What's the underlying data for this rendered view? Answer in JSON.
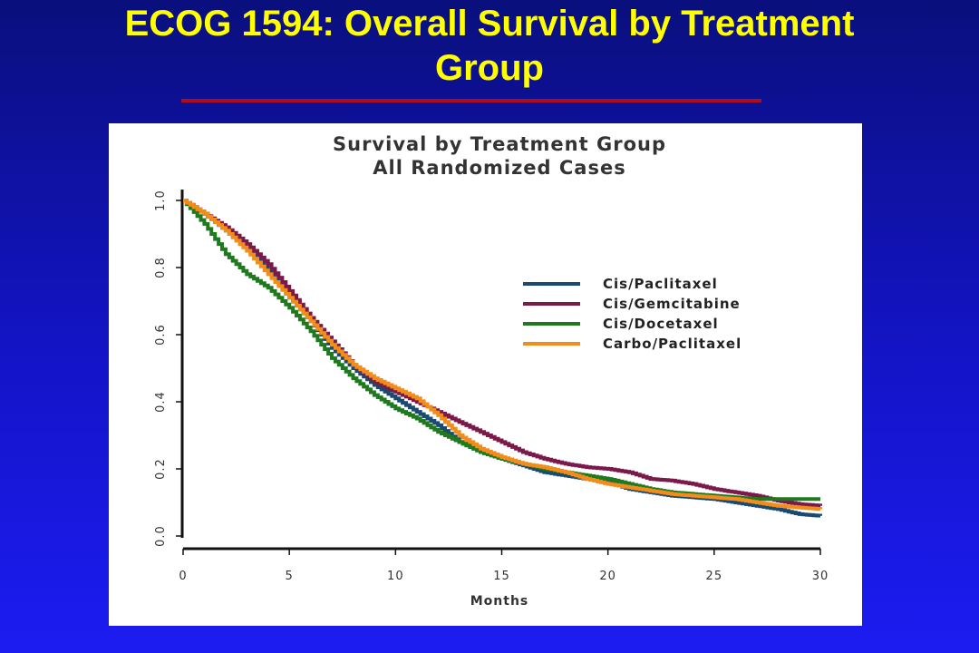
{
  "slide": {
    "title_line1": "ECOG 1594: Overall Survival by Treatment",
    "title_line2": "Group"
  },
  "chart_data": {
    "type": "line",
    "title": "Survival by Treatment Group",
    "subtitle": "All Randomized Cases",
    "xlabel": "Months",
    "ylabel": "",
    "xlim": [
      0,
      30
    ],
    "ylim": [
      0,
      1
    ],
    "x_ticks": [
      "0",
      "5",
      "10",
      "15",
      "20",
      "25",
      "30"
    ],
    "y_ticks": [
      "0.0",
      "0.2",
      "0.4",
      "0.6",
      "0.8",
      "1.0"
    ],
    "grid": false,
    "legend_position": "right",
    "series": [
      {
        "name": "Cis/Paclitaxel",
        "color": "#1a4a72",
        "points": [
          [
            0,
            1.0
          ],
          [
            1,
            0.96
          ],
          [
            2,
            0.91
          ],
          [
            3,
            0.86
          ],
          [
            4,
            0.79
          ],
          [
            5,
            0.71
          ],
          [
            6,
            0.64
          ],
          [
            7,
            0.56
          ],
          [
            8,
            0.5
          ],
          [
            9,
            0.45
          ],
          [
            10,
            0.41
          ],
          [
            11,
            0.37
          ],
          [
            12,
            0.33
          ],
          [
            13,
            0.28
          ],
          [
            14,
            0.25
          ],
          [
            15,
            0.23
          ],
          [
            16,
            0.21
          ],
          [
            17,
            0.19
          ],
          [
            18,
            0.18
          ],
          [
            19,
            0.17
          ],
          [
            20,
            0.16
          ],
          [
            21,
            0.14
          ],
          [
            22,
            0.13
          ],
          [
            23,
            0.12
          ],
          [
            24,
            0.115
          ],
          [
            25,
            0.11
          ],
          [
            26,
            0.1
          ],
          [
            27,
            0.09
          ],
          [
            28,
            0.08
          ],
          [
            29,
            0.065
          ],
          [
            30,
            0.06
          ]
        ]
      },
      {
        "name": "Cis/Gemcitabine",
        "color": "#7b1a4a",
        "points": [
          [
            0,
            1.0
          ],
          [
            1,
            0.96
          ],
          [
            2,
            0.92
          ],
          [
            3,
            0.87
          ],
          [
            4,
            0.81
          ],
          [
            5,
            0.73
          ],
          [
            6,
            0.65
          ],
          [
            7,
            0.58
          ],
          [
            8,
            0.51
          ],
          [
            9,
            0.46
          ],
          [
            10,
            0.43
          ],
          [
            11,
            0.4
          ],
          [
            12,
            0.37
          ],
          [
            13,
            0.34
          ],
          [
            14,
            0.31
          ],
          [
            15,
            0.28
          ],
          [
            16,
            0.25
          ],
          [
            17,
            0.23
          ],
          [
            18,
            0.215
          ],
          [
            19,
            0.205
          ],
          [
            20,
            0.2
          ],
          [
            21,
            0.19
          ],
          [
            22,
            0.17
          ],
          [
            23,
            0.165
          ],
          [
            24,
            0.155
          ],
          [
            25,
            0.14
          ],
          [
            26,
            0.13
          ],
          [
            27,
            0.12
          ],
          [
            28,
            0.105
          ],
          [
            29,
            0.095
          ],
          [
            30,
            0.09
          ]
        ]
      },
      {
        "name": "Cis/Docetaxel",
        "color": "#1f7a1f",
        "points": [
          [
            0,
            1.0
          ],
          [
            1,
            0.93
          ],
          [
            2,
            0.84
          ],
          [
            3,
            0.78
          ],
          [
            4,
            0.74
          ],
          [
            5,
            0.68
          ],
          [
            6,
            0.61
          ],
          [
            7,
            0.53
          ],
          [
            8,
            0.47
          ],
          [
            9,
            0.42
          ],
          [
            10,
            0.38
          ],
          [
            11,
            0.35
          ],
          [
            12,
            0.31
          ],
          [
            13,
            0.28
          ],
          [
            14,
            0.25
          ],
          [
            15,
            0.23
          ],
          [
            16,
            0.215
          ],
          [
            17,
            0.2
          ],
          [
            18,
            0.19
          ],
          [
            19,
            0.18
          ],
          [
            20,
            0.17
          ],
          [
            21,
            0.155
          ],
          [
            22,
            0.14
          ],
          [
            23,
            0.13
          ],
          [
            24,
            0.125
          ],
          [
            25,
            0.12
          ],
          [
            26,
            0.115
          ],
          [
            27,
            0.11
          ],
          [
            28,
            0.11
          ],
          [
            29,
            0.11
          ],
          [
            30,
            0.11
          ]
        ]
      },
      {
        "name": "Carbo/Paclitaxel",
        "color": "#f28c1a",
        "points": [
          [
            0,
            1.0
          ],
          [
            1,
            0.96
          ],
          [
            2,
            0.91
          ],
          [
            3,
            0.85
          ],
          [
            4,
            0.78
          ],
          [
            5,
            0.71
          ],
          [
            6,
            0.64
          ],
          [
            7,
            0.57
          ],
          [
            8,
            0.51
          ],
          [
            9,
            0.47
          ],
          [
            10,
            0.44
          ],
          [
            11,
            0.41
          ],
          [
            12,
            0.36
          ],
          [
            13,
            0.3
          ],
          [
            14,
            0.26
          ],
          [
            15,
            0.235
          ],
          [
            16,
            0.215
          ],
          [
            17,
            0.205
          ],
          [
            18,
            0.19
          ],
          [
            19,
            0.17
          ],
          [
            20,
            0.155
          ],
          [
            21,
            0.145
          ],
          [
            22,
            0.135
          ],
          [
            23,
            0.125
          ],
          [
            24,
            0.12
          ],
          [
            25,
            0.115
          ],
          [
            26,
            0.11
          ],
          [
            27,
            0.1
          ],
          [
            28,
            0.09
          ],
          [
            29,
            0.085
          ],
          [
            30,
            0.08
          ]
        ]
      }
    ]
  }
}
